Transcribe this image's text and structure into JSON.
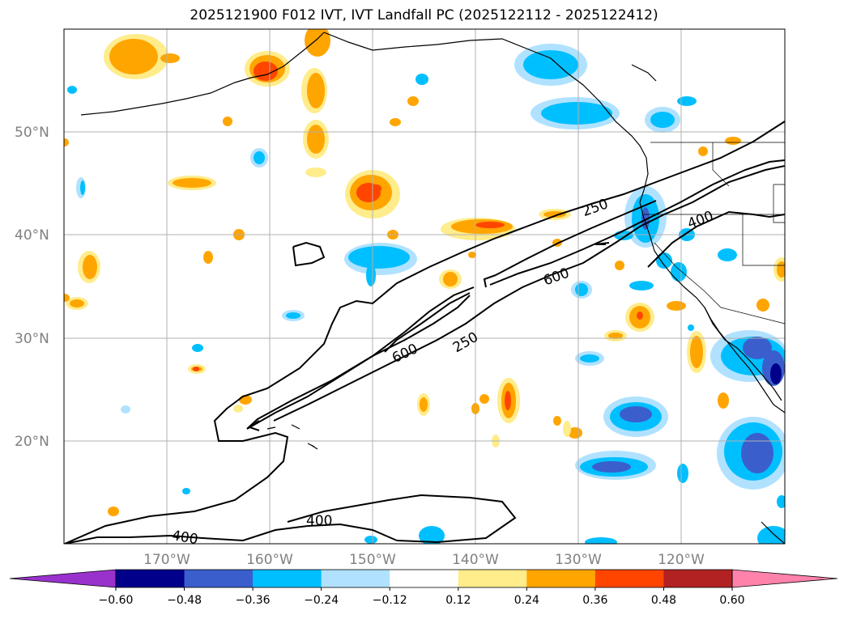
{
  "title": "2025121900 F012 IVT, IVT Landfall PC (2025122112 - 2025122412)",
  "lat_labels": [
    "50°N",
    "40°N",
    "30°N",
    "20°N"
  ],
  "lon_labels": [
    "170°W",
    "160°W",
    "150°W",
    "140°W",
    "130°W",
    "120°W"
  ],
  "contour_labels": [
    "250",
    "400",
    "600",
    "600",
    "250",
    "400"
  ],
  "colorbar": {
    "ticks": [
      "−0.60",
      "−0.48",
      "−0.36",
      "−0.24",
      "−0.12",
      "0.12",
      "0.24",
      "0.36",
      "0.48",
      "0.60"
    ],
    "colors": [
      "#9932cc",
      "#00008b",
      "#3a5fcd",
      "#00bfff",
      "#b0e2ff",
      "#ffffff",
      "#ffec8b",
      "#ffa500",
      "#ff4500",
      "#b22222",
      "#ff82ab"
    ]
  },
  "chart_data": {
    "type": "filled-contour-map",
    "title": "2025121900 F012 IVT, IVT Landfall PC (2025122112 - 2025122412)",
    "lon_range": [
      -180,
      -110
    ],
    "lat_range": [
      10,
      60
    ],
    "ivt_contour_levels": [
      250,
      400,
      600
    ],
    "pc_levels": [
      -0.6,
      -0.48,
      -0.36,
      -0.24,
      -0.12,
      0.12,
      0.24,
      0.36,
      0.48,
      0.6
    ],
    "grid": true
  }
}
